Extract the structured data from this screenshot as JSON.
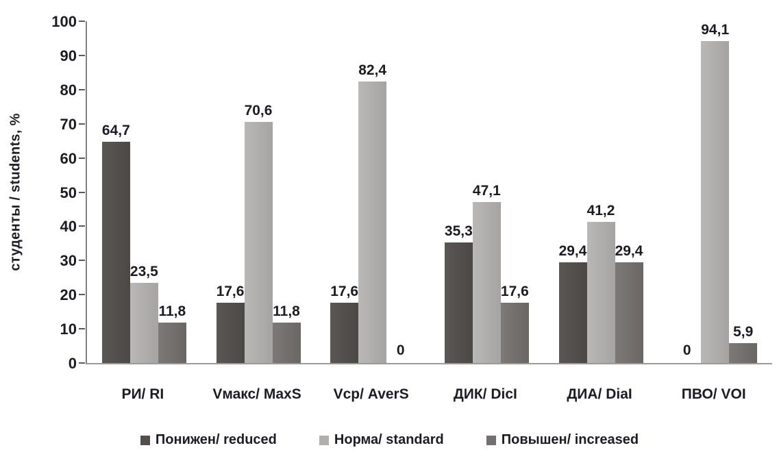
{
  "chart_data": {
    "type": "bar",
    "title": "",
    "ylabel": "студенты / students, %",
    "xlabel": "",
    "ylim": [
      0,
      100
    ],
    "ytick_step": 10,
    "grid": false,
    "legend_position": "bottom",
    "decimal_separator": ",",
    "categories": [
      "РИ/ RI",
      "Vмакс/ MaxS",
      "Vср/ AverS",
      "ДИК/ DicI",
      "ДИА/ DiaI",
      "ПВО/ VOI"
    ],
    "series": [
      {
        "name": "Понижен/ reduced",
        "color": "#514e4b",
        "color_left": "#5a5754",
        "color_right": "#4b4845",
        "values": [
          64.7,
          17.6,
          17.6,
          35.3,
          29.4,
          0
        ],
        "labels": [
          "64,7",
          "17,6",
          "17,6",
          "35,3",
          "29,4",
          "0"
        ]
      },
      {
        "name": "Норма/ standard",
        "color": "#b1afad",
        "color_left": "#bab8b6",
        "color_right": "#a6a4a2",
        "values": [
          23.5,
          70.6,
          82.4,
          47.1,
          41.2,
          94.1
        ],
        "labels": [
          "23,5",
          "70,6",
          "82,4",
          "47,1",
          "41,2",
          "94,1"
        ]
      },
      {
        "name": "Повышен/ increased",
        "color": "#747070",
        "color_left": "#7d7977",
        "color_right": "#6a6664",
        "values": [
          11.8,
          11.8,
          0,
          17.6,
          29.4,
          5.9
        ],
        "labels": [
          "11,8",
          "11,8",
          "0",
          "17,6",
          "29,4",
          "5,9"
        ]
      }
    ],
    "ytick_labels": [
      "0",
      "10",
      "20",
      "30",
      "40",
      "50",
      "60",
      "70",
      "80",
      "90",
      "100"
    ]
  }
}
